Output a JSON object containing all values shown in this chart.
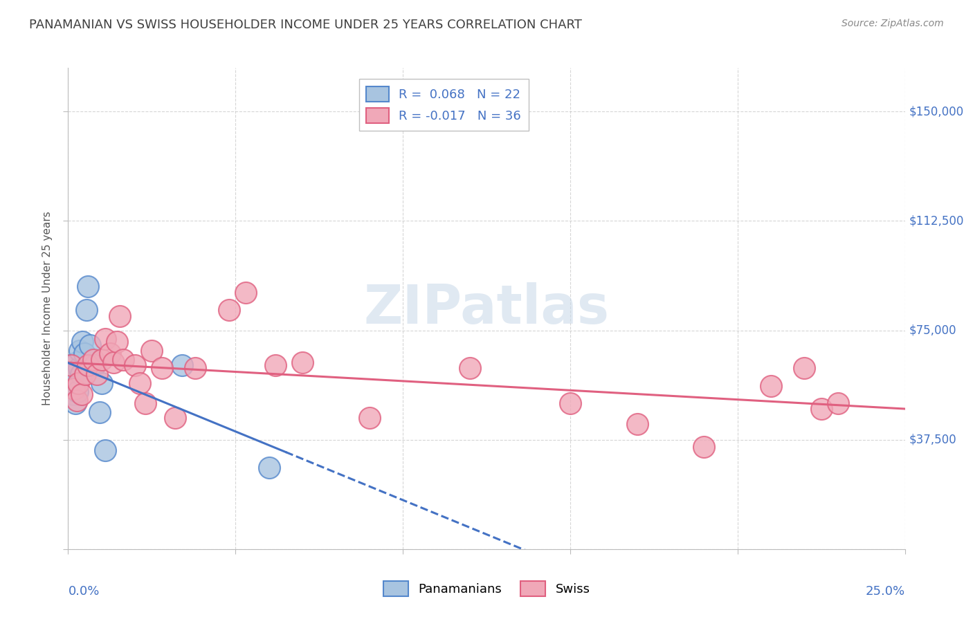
{
  "title": "PANAMANIAN VS SWISS HOUSEHOLDER INCOME UNDER 25 YEARS CORRELATION CHART",
  "source": "Source: ZipAtlas.com",
  "ylabel": "Householder Income Under 25 years",
  "watermark": "ZIPatlas",
  "legend_r_panama": "0.068",
  "legend_n_panama": "22",
  "legend_r_swiss": "-0.017",
  "legend_n_swiss": "36",
  "panama_color": "#a8c4e0",
  "swiss_color": "#f0a8b8",
  "panama_edge_color": "#5588cc",
  "swiss_edge_color": "#e06080",
  "panama_line_color": "#4472c4",
  "swiss_line_color": "#e06080",
  "title_color": "#404040",
  "value_color": "#4472c4",
  "background_color": "#ffffff",
  "xlim": [
    0.0,
    0.25
  ],
  "ylim": [
    0,
    165000
  ],
  "yticks": [
    0,
    37500,
    75000,
    112500,
    150000
  ],
  "ytick_labels": [
    "",
    "$37,500",
    "$75,000",
    "$112,500",
    "$150,000"
  ],
  "panama_x": [
    0.0008,
    0.001,
    0.0015,
    0.0018,
    0.002,
    0.0022,
    0.0025,
    0.0028,
    0.0032,
    0.0035,
    0.0038,
    0.0042,
    0.0048,
    0.0055,
    0.006,
    0.0065,
    0.008,
    0.0095,
    0.01,
    0.011,
    0.034,
    0.06
  ],
  "panama_y": [
    63000,
    57000,
    53000,
    60000,
    55000,
    50000,
    64000,
    54000,
    62000,
    68000,
    60000,
    71000,
    67000,
    82000,
    90000,
    70000,
    63000,
    47000,
    57000,
    34000,
    63000,
    28000
  ],
  "swiss_x": [
    0.001,
    0.0018,
    0.0025,
    0.003,
    0.004,
    0.005,
    0.006,
    0.0075,
    0.0085,
    0.01,
    0.011,
    0.0125,
    0.0135,
    0.0145,
    0.0155,
    0.0165,
    0.02,
    0.0215,
    0.023,
    0.025,
    0.028,
    0.032,
    0.038,
    0.048,
    0.053,
    0.062,
    0.07,
    0.09,
    0.12,
    0.15,
    0.17,
    0.19,
    0.21,
    0.22,
    0.225,
    0.23
  ],
  "swiss_y": [
    63000,
    55000,
    51000,
    57000,
    53000,
    60000,
    63000,
    65000,
    60000,
    65000,
    72000,
    67000,
    64000,
    71000,
    80000,
    65000,
    63000,
    57000,
    50000,
    68000,
    62000,
    45000,
    62000,
    82000,
    88000,
    63000,
    64000,
    45000,
    62000,
    50000,
    43000,
    35000,
    56000,
    62000,
    48000,
    50000
  ]
}
